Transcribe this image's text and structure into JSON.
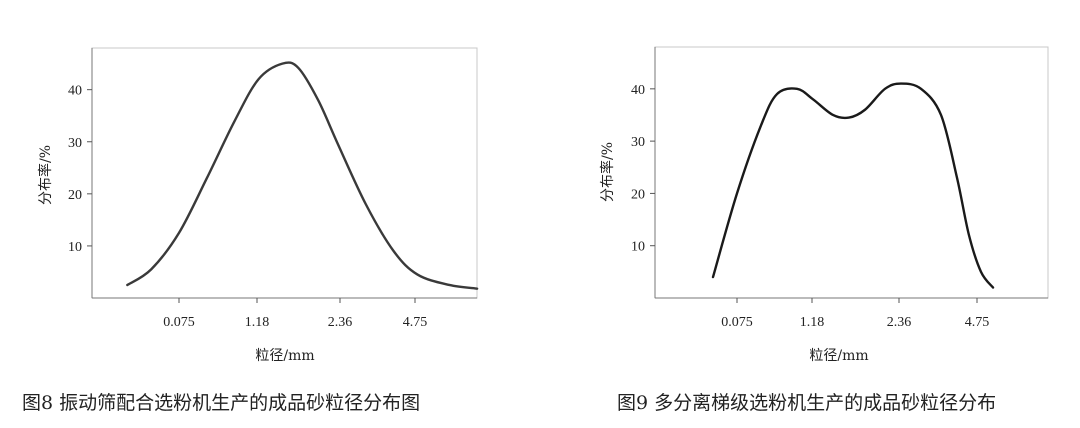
{
  "chart_data": [
    {
      "type": "line",
      "caption": "图8  振动筛配合选粉机生产的成品砂粒径分布图",
      "xlabel": "粒径/mm",
      "ylabel": "分布率/%",
      "x_ticks": [
        "0.075",
        "1.18",
        "2.36",
        "4.75"
      ],
      "y_ticks": [
        10,
        20,
        30,
        40
      ],
      "ylim": [
        0,
        48
      ],
      "series": [
        {
          "x": [
            -0.65,
            -0.35,
            0.0,
            0.35,
            0.7,
            1.0,
            1.3,
            1.5,
            1.75,
            2.0,
            2.35,
            2.7,
            3.0,
            3.4,
            3.75
          ],
          "y": [
            2.5,
            5.5,
            12.5,
            23,
            34,
            42,
            45,
            44.2,
            38,
            29.5,
            18,
            9,
            4.5,
            2.5,
            1.8
          ]
        }
      ],
      "line_color": "#3a3a3a"
    },
    {
      "type": "line",
      "caption": "图9  多分离梯级选粉机生产的成品砂粒径分布",
      "xlabel": "粒径/mm",
      "ylabel": "分布率/%",
      "x_ticks": [
        "0.075",
        "1.18",
        "2.36",
        "4.75"
      ],
      "y_ticks": [
        10,
        20,
        30,
        40
      ],
      "ylim": [
        0,
        48
      ],
      "series": [
        {
          "x": [
            -0.3,
            0.0,
            0.3,
            0.5,
            0.75,
            0.95,
            1.2,
            1.4,
            1.6,
            1.85,
            2.05,
            2.3,
            2.55,
            2.75,
            2.9,
            3.05,
            3.2
          ],
          "y": [
            4,
            20,
            33,
            39,
            40,
            38,
            35,
            34.5,
            36,
            40,
            41,
            40,
            35,
            23,
            12,
            5,
            2
          ]
        }
      ],
      "line_color": "#1a1a1a"
    }
  ]
}
